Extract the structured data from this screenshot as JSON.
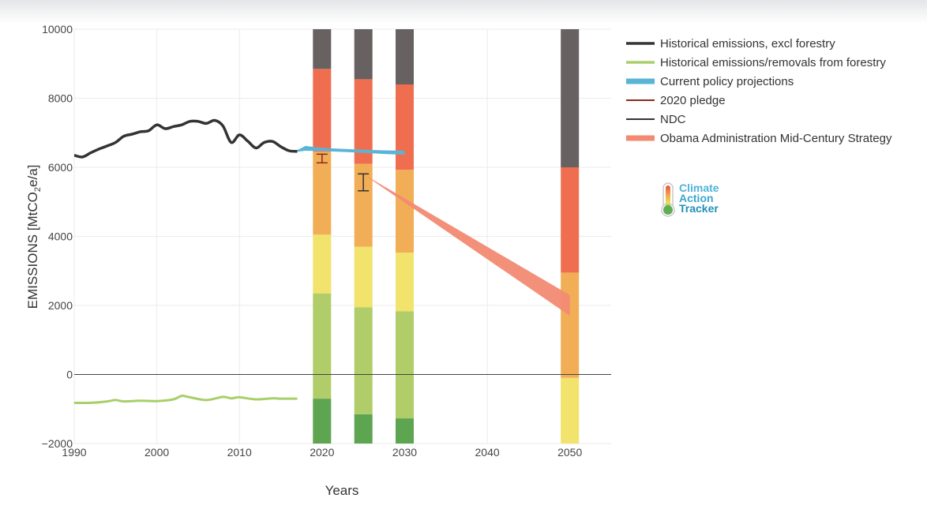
{
  "chart_data": {
    "type": "area",
    "xlabel": "Years",
    "ylabel_main": "EMISSIONS [MtCO",
    "ylabel_sub": "2",
    "ylabel_end": "e/a]",
    "xlim": [
      1990,
      2055
    ],
    "ylim": [
      -2000,
      10000
    ],
    "xticks": [
      1990,
      2000,
      2010,
      2020,
      2030,
      2040,
      2050
    ],
    "yticks": [
      10000,
      8000,
      6000,
      4000,
      2000,
      0,
      -2000
    ],
    "ytick_labels": [
      "10000",
      "8000",
      "6000",
      "4000",
      "2000",
      "0",
      "−2000"
    ],
    "series": [
      {
        "name": "Historical emissions, excl forestry",
        "color": "#333333",
        "x": [
          1990,
          1991,
          1992,
          1993,
          1994,
          1995,
          1996,
          1997,
          1998,
          1999,
          2000,
          2001,
          2002,
          2003,
          2004,
          2005,
          2006,
          2007,
          2008,
          2009,
          2010,
          2011,
          2012,
          2013,
          2014,
          2015,
          2016,
          2017
        ],
        "y": [
          6350,
          6300,
          6420,
          6530,
          6620,
          6720,
          6900,
          6960,
          7030,
          7060,
          7230,
          7120,
          7180,
          7230,
          7330,
          7330,
          7270,
          7360,
          7200,
          6720,
          6940,
          6760,
          6560,
          6720,
          6750,
          6600,
          6480,
          6460
        ]
      },
      {
        "name": "Historical emissions/removals from forestry",
        "color": "#a8cf6a",
        "x": [
          1990,
          1992,
          1994,
          1995,
          1996,
          1998,
          2000,
          2002,
          2003,
          2004,
          2006,
          2008,
          2009,
          2010,
          2012,
          2014,
          2015,
          2017
        ],
        "y": [
          -820,
          -820,
          -780,
          -740,
          -780,
          -760,
          -770,
          -720,
          -620,
          -660,
          -740,
          -650,
          -690,
          -660,
          -720,
          -690,
          -700,
          -700
        ]
      },
      {
        "name": "Current policy projections",
        "color": "#5ab4d6",
        "x": [
          2017,
          2018,
          2020,
          2022,
          2025,
          2028,
          2030
        ],
        "y_low": [
          6450,
          6480,
          6470,
          6450,
          6420,
          6380,
          6370
        ],
        "y_high": [
          6500,
          6620,
          6560,
          6540,
          6510,
          6490,
          6480
        ]
      },
      {
        "name": "2020 pledge",
        "color": "#8b2a1c",
        "x": 2020,
        "y_low": 6130,
        "y_high": 6380
      },
      {
        "name": "NDC",
        "color": "#333333",
        "x": 2025,
        "y_low": 5320,
        "y_high": 5810
      },
      {
        "name": "Obama Administration Mid-Century Strategy",
        "color": "#f28a72",
        "x": [
          2025,
          2050
        ],
        "y_low": [
          5800,
          1700
        ],
        "y_high": [
          5800,
          2300
        ]
      }
    ],
    "rating_bars": [
      {
        "year": 2020,
        "segments": [
          {
            "color": "#5da550",
            "from": -2000,
            "to": -700
          },
          {
            "color": "#b1cd6a",
            "from": -700,
            "to": 2350
          },
          {
            "color": "#f1e36c",
            "from": 2350,
            "to": 4050
          },
          {
            "color": "#f2ae56",
            "from": 4050,
            "to": 6450
          },
          {
            "color": "#f06e50",
            "from": 6450,
            "to": 8850
          },
          {
            "color": "#676161",
            "from": 8850,
            "to": 10000
          }
        ]
      },
      {
        "year": 2025,
        "segments": [
          {
            "color": "#5da550",
            "from": -2000,
            "to": -1150
          },
          {
            "color": "#b1cd6a",
            "from": -1150,
            "to": 1950
          },
          {
            "color": "#f1e36c",
            "from": 1950,
            "to": 3700
          },
          {
            "color": "#f2ae56",
            "from": 3700,
            "to": 6100
          },
          {
            "color": "#f06e50",
            "from": 6100,
            "to": 8550
          },
          {
            "color": "#676161",
            "from": 8550,
            "to": 10000
          }
        ]
      },
      {
        "year": 2030,
        "segments": [
          {
            "color": "#5da550",
            "from": -2000,
            "to": -1270
          },
          {
            "color": "#b1cd6a",
            "from": -1270,
            "to": 1830
          },
          {
            "color": "#f1e36c",
            "from": 1830,
            "to": 3530
          },
          {
            "color": "#f2ae56",
            "from": 3530,
            "to": 5930
          },
          {
            "color": "#f06e50",
            "from": 5930,
            "to": 8400
          },
          {
            "color": "#676161",
            "from": 8400,
            "to": 10000
          }
        ]
      },
      {
        "year": 2050,
        "segments": [
          {
            "color": "#f1e36c",
            "from": -2000,
            "to": -100
          },
          {
            "color": "#f2ae56",
            "from": -100,
            "to": 2950
          },
          {
            "color": "#f06e50",
            "from": 2950,
            "to": 6000
          },
          {
            "color": "#676161",
            "from": 6000,
            "to": 10000
          }
        ]
      }
    ],
    "legend": [
      {
        "label": "Historical emissions, excl forestry",
        "color": "#333333",
        "style": "line-thick"
      },
      {
        "label": "Historical emissions/removals from forestry",
        "color": "#a8cf6a",
        "style": "line-thick"
      },
      {
        "label": "Current policy projections",
        "color": "#5ab4d6",
        "style": "band"
      },
      {
        "label": "2020 pledge",
        "color": "#8b2a1c",
        "style": "line-thin"
      },
      {
        "label": "NDC",
        "color": "#333333",
        "style": "line-thin"
      },
      {
        "label": "Obama Administration Mid-Century Strategy",
        "color": "#f28a72",
        "style": "band"
      }
    ],
    "legend_position": "top-right"
  },
  "logo": {
    "line1": "Climate",
    "line2": "Action",
    "line3": "Tracker",
    "color_light": "#4fb3d9",
    "color_dark": "#1f8fb8"
  }
}
